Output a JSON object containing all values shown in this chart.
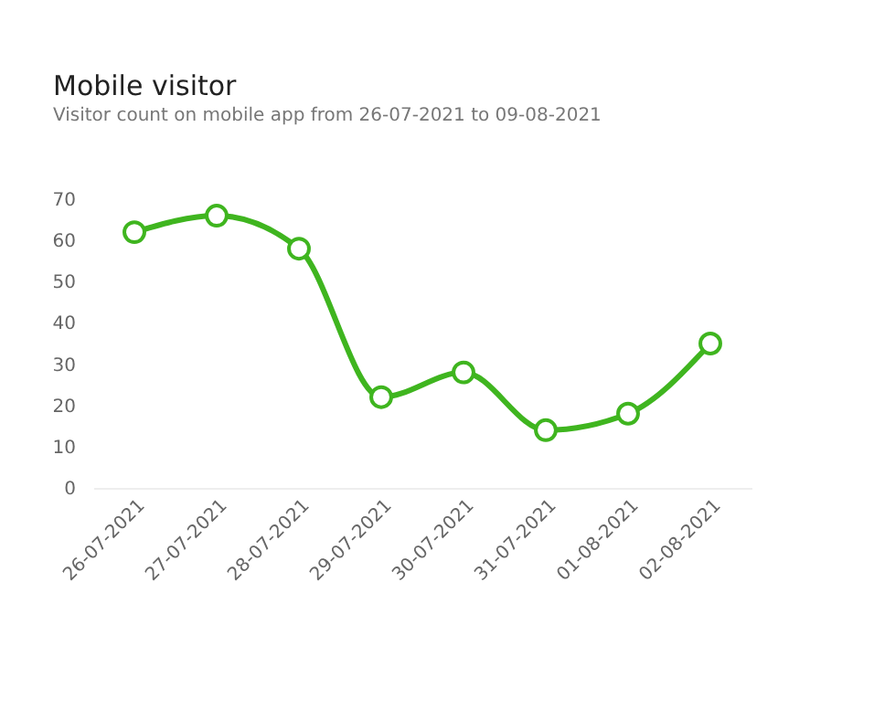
{
  "chart_data": {
    "type": "line",
    "title": "Mobile visitor",
    "subtitle": "Visitor count on mobile app from 26-07-2021 to 09-08-2021",
    "categories": [
      "26-07-2021",
      "27-07-2021",
      "28-07-2021",
      "29-07-2021",
      "30-07-2021",
      "31-07-2021",
      "01-08-2021",
      "02-08-2021"
    ],
    "series": [
      {
        "color": "#3fb51f",
        "values": [
          62,
          66,
          58,
          22,
          28,
          14,
          18,
          35
        ]
      }
    ],
    "ylim": [
      0,
      70
    ],
    "yticks": [
      0,
      10,
      20,
      30,
      40,
      50,
      60,
      70
    ],
    "marker": "circle",
    "line_style": "solid",
    "grid": false,
    "legend": false
  }
}
